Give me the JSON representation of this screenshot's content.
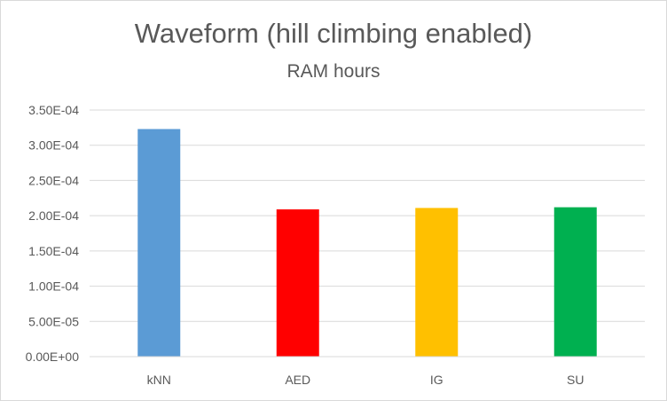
{
  "chart_data": {
    "type": "bar",
    "title": "Waveform (hill climbing enabled)",
    "subtitle": "RAM hours",
    "categories": [
      "kNN",
      "AED",
      "IG",
      "SU"
    ],
    "values": [
      0.000323,
      0.000209,
      0.000211,
      0.000212
    ],
    "colors": [
      "#5b9bd5",
      "#ff0000",
      "#ffc000",
      "#00b050"
    ],
    "ylim": [
      0,
      0.00035
    ],
    "yticks": [
      0,
      5e-05,
      0.0001,
      0.00015,
      0.0002,
      0.00025,
      0.0003,
      0.00035
    ],
    "ytick_labels": [
      "0.00E+00",
      "5.00E-05",
      "1.00E-04",
      "1.50E-04",
      "2.00E-04",
      "2.50E-04",
      "3.00E-04",
      "3.50E-04"
    ],
    "grid": true,
    "legend": "none",
    "xlabel": "",
    "ylabel": ""
  }
}
